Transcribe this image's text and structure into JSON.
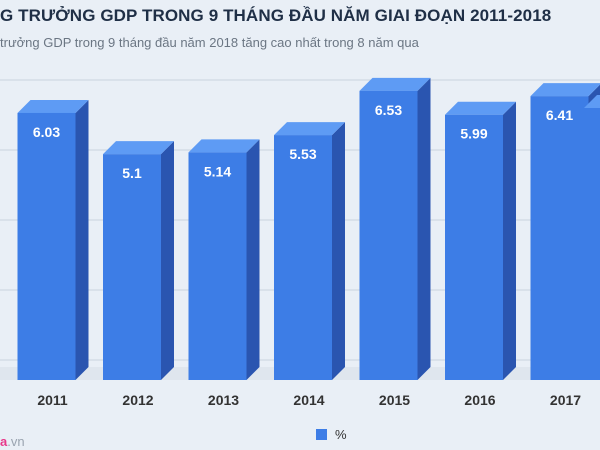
{
  "chart_data": {
    "type": "bar",
    "title": "G TRƯỞNG GDP TRONG 9 THÁNG ĐẦU NĂM GIAI ĐOẠN 2011-2018",
    "subtitle": "trưởng GDP trong 9 tháng đầu năm 2018 tăng cao nhất trong 8 năm qua",
    "categories": [
      "2011",
      "2012",
      "2013",
      "2014",
      "2015",
      "2016",
      "2017"
    ],
    "series": [
      {
        "name": "%",
        "values": [
          6.03,
          5.1,
          5.14,
          5.53,
          6.53,
          5.99,
          6.41
        ]
      }
    ],
    "xlabel": "",
    "ylabel": "",
    "ylim": [
      0,
      7
    ],
    "grid": true,
    "legend_position": "bottom",
    "colors": {
      "bar_front": "#3d7de6",
      "bar_side": "#2a55b0",
      "bar_top": "#5e9bf4",
      "grid": "#c9d3de"
    }
  },
  "watermark": {
    "brand": "a",
    "suffix": ".vn"
  }
}
